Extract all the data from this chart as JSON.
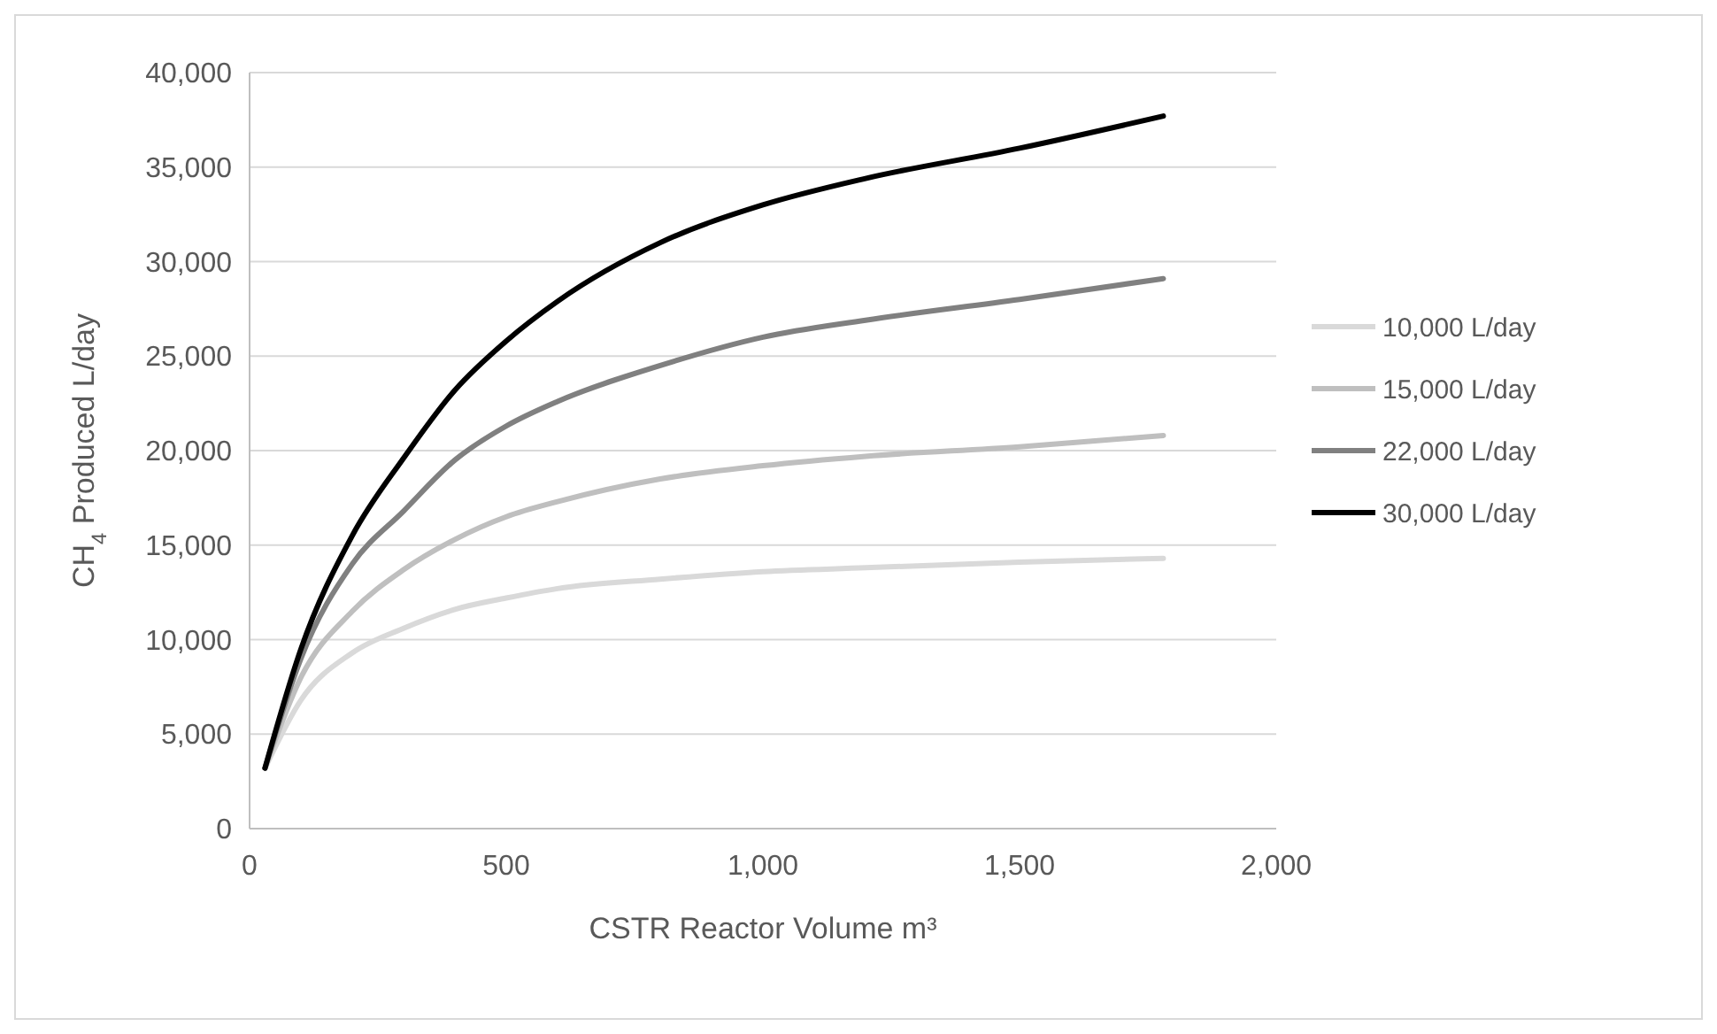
{
  "chart_data": {
    "type": "line",
    "xlabel": "CSTR Reactor Volume m³",
    "ylabel": "CH$_{4}$ Produced L/day",
    "x": [
      30,
      100,
      200,
      300,
      400,
      500,
      600,
      800,
      1000,
      1200,
      1500,
      1780
    ],
    "series": [
      {
        "name": "10,000 L/day",
        "color": "#d9d9d9",
        "values": [
          3200,
          6800,
          9300,
          10600,
          11600,
          12200,
          12700,
          13200,
          13600,
          13800,
          14100,
          14300
        ]
      },
      {
        "name": "15,000 L/day",
        "color": "#bfbfbf",
        "values": [
          3200,
          8000,
          11500,
          13700,
          15300,
          16500,
          17300,
          18500,
          19200,
          19700,
          20200,
          20800
        ]
      },
      {
        "name": "22,000 L/day",
        "color": "#808080",
        "values": [
          3200,
          9000,
          14000,
          16800,
          19500,
          21300,
          22600,
          24500,
          26000,
          26900,
          28000,
          29100
        ]
      },
      {
        "name": "30,000 L/day",
        "color": "#000000",
        "values": [
          3200,
          9500,
          15500,
          19600,
          23200,
          25800,
          27900,
          31000,
          33000,
          34400,
          36000,
          37700
        ]
      }
    ],
    "xlim": [
      0,
      2000
    ],
    "xticks": [
      0,
      500,
      {
        "value": 1000,
        "label": "1,000"
      },
      {
        "value": 1500,
        "label": "1,500"
      },
      {
        "value": 2000,
        "label": "2,000"
      }
    ],
    "ylim": [
      0,
      40000
    ],
    "yticks": [
      0,
      {
        "value": 5000,
        "label": "5,000"
      },
      {
        "value": 10000,
        "label": "10,000"
      },
      {
        "value": 15000,
        "label": "15,000"
      },
      {
        "value": 20000,
        "label": "20,000"
      },
      {
        "value": 25000,
        "label": "25,000"
      },
      {
        "value": 30000,
        "label": "30,000"
      },
      {
        "value": 35000,
        "label": "35,000"
      },
      {
        "value": 40000,
        "label": "40,000"
      }
    ],
    "grid": "y",
    "legend": "right",
    "marker": "none",
    "line_style": "solid"
  }
}
